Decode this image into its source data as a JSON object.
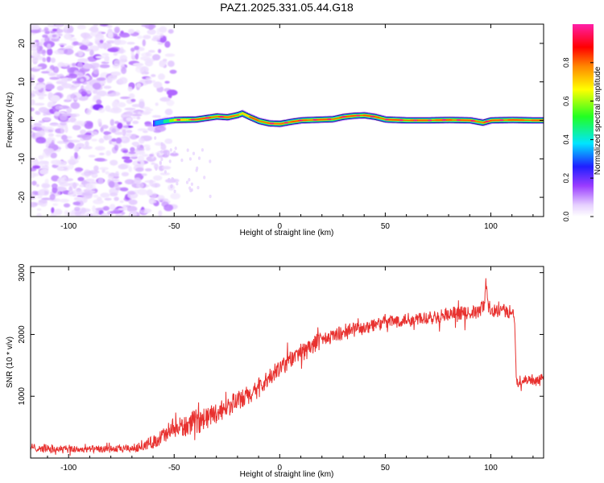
{
  "title": "PAZ1.2025.331.05.44.G18",
  "colors": {
    "series": "#e8312f",
    "axis": "#000000",
    "background": "#ffffff"
  },
  "chart_data": [
    {
      "type": "heatmap",
      "title": "PAZ1.2025.331.05.44.G18",
      "xlabel": "Height of straight line (km)",
      "ylabel": "Frequency (Hz)",
      "xlim": [
        -118,
        125
      ],
      "ylim": [
        -25,
        25
      ],
      "xticks": [
        -100,
        -50,
        0,
        50,
        100
      ],
      "xtick_labels": [
        "-100",
        "-50",
        "0",
        "50",
        "100"
      ],
      "yticks": [
        -20,
        -10,
        0,
        10,
        20
      ],
      "ytick_labels": [
        "-20",
        "-10",
        "0",
        "10",
        "20"
      ],
      "colorbar": {
        "label": "Normalized spectral amplitude",
        "range": [
          0,
          1
        ],
        "ticks": [
          0.0,
          0.2,
          0.4,
          0.6,
          0.8
        ],
        "tick_labels": [
          "0.0",
          "0.2",
          "0.4",
          "0.6",
          "0.8"
        ],
        "colormap": "rainbow (white-violet-blue-cyan-green-yellow-red-magenta)"
      },
      "ridge": {
        "description": "Dominant narrow-band signal near 0 Hz",
        "x": [
          -60,
          -55,
          -50,
          -40,
          -35,
          -30,
          -25,
          -20,
          -18,
          -15,
          -10,
          -5,
          0,
          5,
          10,
          15,
          20,
          25,
          30,
          35,
          40,
          45,
          50,
          60,
          70,
          80,
          90,
          96,
          100,
          110,
          120,
          125
        ],
        "y": [
          -0.8,
          -0.3,
          0.1,
          0.2,
          0.6,
          1.0,
          0.8,
          1.4,
          1.8,
          1.0,
          -0.2,
          -0.8,
          -0.9,
          -0.4,
          0.0,
          0.1,
          0.2,
          0.3,
          0.9,
          1.2,
          1.3,
          0.9,
          0.2,
          0.0,
          0.0,
          0.1,
          0.0,
          -0.6,
          0.0,
          0.1,
          0.0,
          0.0
        ],
        "amplitude": [
          0.3,
          0.45,
          0.7,
          0.85,
          0.8,
          0.85,
          0.8,
          0.8,
          0.75,
          0.8,
          0.85,
          0.8,
          0.8,
          0.85,
          0.85,
          0.85,
          0.85,
          0.85,
          0.85,
          0.85,
          0.85,
          0.85,
          0.9,
          0.9,
          0.9,
          0.9,
          0.9,
          0.8,
          0.9,
          0.9,
          0.9,
          0.9
        ]
      },
      "noise_region": {
        "x_range": [
          -118,
          -55
        ],
        "y_range": [
          -25,
          25
        ],
        "amplitude_range": [
          0.0,
          0.2
        ],
        "description": "Scattered low-amplitude noise blobs at low heights"
      }
    },
    {
      "type": "line",
      "xlabel": "Height of straight line (km)",
      "ylabel": "SNR (10 * v/v)",
      "xlim": [
        -118,
        125
      ],
      "ylim": [
        0,
        3100
      ],
      "xticks": [
        -100,
        -50,
        0,
        50,
        100
      ],
      "xtick_labels": [
        "-100",
        "-50",
        "0",
        "50",
        "100"
      ],
      "yticks": [
        1000,
        2000,
        3000
      ],
      "ytick_labels": [
        "1000",
        "2000",
        "3000"
      ],
      "series": [
        {
          "name": "SNR",
          "color": "#e8312f",
          "x": [
            -118,
            -110,
            -100,
            -90,
            -80,
            -70,
            -65,
            -60,
            -55,
            -50,
            -45,
            -40,
            -35,
            -30,
            -25,
            -20,
            -15,
            -10,
            -5,
            0,
            5,
            10,
            15,
            20,
            25,
            30,
            35,
            40,
            45,
            50,
            55,
            60,
            65,
            70,
            75,
            80,
            85,
            90,
            95,
            98,
            100,
            105,
            110,
            111,
            112,
            115,
            120,
            125
          ],
          "y": [
            170,
            150,
            140,
            140,
            140,
            150,
            190,
            260,
            360,
            450,
            520,
            580,
            650,
            740,
            830,
            920,
            1000,
            1120,
            1280,
            1450,
            1600,
            1720,
            1820,
            1900,
            1970,
            2030,
            2080,
            2120,
            2160,
            2200,
            2220,
            2240,
            2260,
            2280,
            2300,
            2320,
            2330,
            2340,
            2370,
            2600,
            2400,
            2380,
            2370,
            2360,
            1200,
            1260,
            1270,
            1260
          ],
          "noise_amplitude": [
            60,
            60,
            60,
            55,
            55,
            60,
            70,
            100,
            140,
            160,
            160,
            160,
            160,
            150,
            150,
            150,
            150,
            150,
            140,
            140,
            140,
            130,
            130,
            120,
            110,
            110,
            110,
            110,
            110,
            110,
            110,
            110,
            110,
            110,
            110,
            110,
            110,
            110,
            120,
            200,
            110,
            100,
            100,
            100,
            80,
            80,
            80,
            80
          ]
        }
      ]
    }
  ]
}
